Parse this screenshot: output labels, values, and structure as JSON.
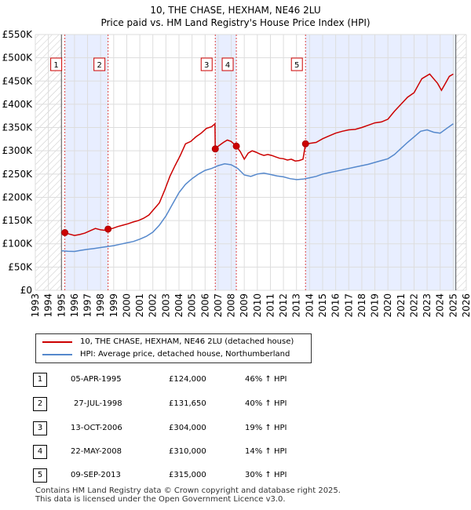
{
  "header": {
    "title": "10, THE CHASE, HEXHAM, NE46 2LU",
    "subtitle": "Price paid vs. HM Land Registry's House Price Index (HPI)"
  },
  "colors": {
    "price_line": "#cc0000",
    "hpi_line": "#5588cc",
    "shade": "#e8eeff",
    "grid": "#dddddd",
    "marker_border": "#cc0000"
  },
  "chart_data": {
    "type": "line",
    "title": "10, THE CHASE, HEXHAM, NE46 2LU",
    "subtitle": "Price paid vs. HM Land Registry's House Price Index (HPI)",
    "xlim": [
      1993,
      2026
    ],
    "ylim": [
      0,
      550000
    ],
    "grid": true,
    "x_ticks": [
      1993,
      1994,
      1995,
      1996,
      1997,
      1998,
      1999,
      2000,
      2001,
      2002,
      2003,
      2004,
      2005,
      2006,
      2007,
      2008,
      2009,
      2010,
      2011,
      2012,
      2013,
      2014,
      2015,
      2016,
      2017,
      2018,
      2019,
      2020,
      2021,
      2022,
      2023,
      2024,
      2025,
      2026
    ],
    "y_ticks": [
      {
        "value": 0,
        "label": "£0"
      },
      {
        "value": 50000,
        "label": "£50K"
      },
      {
        "value": 100000,
        "label": "£100K"
      },
      {
        "value": 150000,
        "label": "£150K"
      },
      {
        "value": 200000,
        "label": "£200K"
      },
      {
        "value": 250000,
        "label": "£250K"
      },
      {
        "value": 300000,
        "label": "£300K"
      },
      {
        "value": 350000,
        "label": "£350K"
      },
      {
        "value": 400000,
        "label": "£400K"
      },
      {
        "value": 450000,
        "label": "£450K"
      },
      {
        "value": 500000,
        "label": "£500K"
      },
      {
        "value": 550000,
        "label": "£550K"
      }
    ],
    "hatched_ranges": [
      [
        1993,
        1995.0
      ],
      [
        2025.2,
        2026
      ]
    ],
    "shaded_ranges": [
      [
        1995.26,
        1998.57
      ],
      [
        2006.78,
        2008.39
      ],
      [
        2013.69,
        2025.2
      ]
    ],
    "series": [
      {
        "name": "10, THE CHASE, HEXHAM, NE46 2LU (detached house)",
        "color": "#cc0000",
        "x": [
          1995.26,
          1995.6,
          1996.0,
          1996.4,
          1996.8,
          1997.2,
          1997.6,
          1998.0,
          1998.3,
          1998.57,
          1998.9,
          1999.3,
          1999.7,
          2000.1,
          2000.5,
          2000.9,
          2001.3,
          2001.7,
          2002.1,
          2002.5,
          2002.9,
          2003.3,
          2003.7,
          2004.1,
          2004.5,
          2004.9,
          2005.3,
          2005.7,
          2006.1,
          2006.5,
          2006.75,
          2006.78,
          2007.1,
          2007.4,
          2007.7,
          2008.0,
          2008.39,
          2008.7,
          2009.0,
          2009.3,
          2009.6,
          2009.9,
          2010.2,
          2010.5,
          2010.8,
          2011.1,
          2011.4,
          2011.7,
          2012.0,
          2012.3,
          2012.6,
          2012.9,
          2013.2,
          2013.5,
          2013.69,
          2014.0,
          2014.5,
          2015.0,
          2015.5,
          2016.0,
          2016.5,
          2017.0,
          2017.5,
          2018.0,
          2018.5,
          2019.0,
          2019.5,
          2020.0,
          2020.5,
          2021.0,
          2021.5,
          2022.0,
          2022.3,
          2022.6,
          2022.9,
          2023.2,
          2023.5,
          2023.8,
          2024.1,
          2024.4,
          2024.7,
          2025.0
        ],
        "y": [
          124000,
          121000,
          118000,
          120000,
          123000,
          128000,
          133000,
          130000,
          129000,
          131650,
          133000,
          137000,
          140000,
          143000,
          147000,
          150000,
          155000,
          162000,
          175000,
          188000,
          215000,
          245000,
          268000,
          290000,
          315000,
          320000,
          330000,
          338000,
          348000,
          352000,
          358000,
          304000,
          312000,
          318000,
          323000,
          320000,
          310000,
          298000,
          282000,
          295000,
          300000,
          297000,
          293000,
          290000,
          292000,
          290000,
          287000,
          284000,
          283000,
          280000,
          282000,
          278000,
          279000,
          282000,
          315000,
          316000,
          318000,
          326000,
          332000,
          338000,
          342000,
          345000,
          346000,
          350000,
          355000,
          360000,
          362000,
          368000,
          385000,
          400000,
          415000,
          425000,
          440000,
          455000,
          460000,
          465000,
          455000,
          445000,
          430000,
          445000,
          460000,
          465000
        ]
      },
      {
        "name": "HPI: Average price, detached house, Northumberland",
        "color": "#5588cc",
        "x": [
          1995.0,
          1995.5,
          1996.0,
          1996.5,
          1997.0,
          1997.5,
          1998.0,
          1998.5,
          1999.0,
          1999.5,
          2000.0,
          2000.5,
          2001.0,
          2001.5,
          2002.0,
          2002.5,
          2003.0,
          2003.5,
          2004.0,
          2004.5,
          2005.0,
          2005.5,
          2006.0,
          2006.5,
          2007.0,
          2007.5,
          2008.0,
          2008.5,
          2009.0,
          2009.5,
          2010.0,
          2010.5,
          2011.0,
          2011.5,
          2012.0,
          2012.5,
          2013.0,
          2013.5,
          2014.0,
          2014.5,
          2015.0,
          2015.5,
          2016.0,
          2016.5,
          2017.0,
          2017.5,
          2018.0,
          2018.5,
          2019.0,
          2019.5,
          2020.0,
          2020.5,
          2021.0,
          2021.5,
          2022.0,
          2022.5,
          2023.0,
          2023.5,
          2024.0,
          2024.5,
          2025.0
        ],
        "y": [
          85000,
          84000,
          83500,
          86000,
          88000,
          90000,
          92000,
          94000,
          96000,
          99000,
          102000,
          105000,
          110000,
          116000,
          125000,
          140000,
          160000,
          185000,
          210000,
          228000,
          240000,
          250000,
          258000,
          262000,
          268000,
          272000,
          270000,
          262000,
          248000,
          245000,
          250000,
          252000,
          249000,
          246000,
          244000,
          240000,
          238000,
          239000,
          242000,
          245000,
          250000,
          253000,
          256000,
          259000,
          262000,
          265000,
          268000,
          271000,
          275000,
          279000,
          283000,
          292000,
          305000,
          318000,
          330000,
          342000,
          345000,
          340000,
          338000,
          348000,
          358000
        ]
      }
    ],
    "sales": [
      {
        "n": "1",
        "x": 1995.26,
        "y": 124000
      },
      {
        "n": "2",
        "x": 1998.57,
        "y": 131650
      },
      {
        "n": "3",
        "x": 2006.78,
        "y": 304000
      },
      {
        "n": "4",
        "x": 2008.39,
        "y": 310000
      },
      {
        "n": "5",
        "x": 2013.69,
        "y": 315000
      }
    ]
  },
  "legend": [
    {
      "label": "10, THE CHASE, HEXHAM, NE46 2LU (detached house)",
      "color": "#cc0000"
    },
    {
      "label": "HPI: Average price, detached house, Northumberland",
      "color": "#5588cc"
    }
  ],
  "table": [
    {
      "n": "1",
      "date": "05-APR-1995",
      "price": "£124,000",
      "hpi": "46% ↑ HPI"
    },
    {
      "n": "2",
      "date": "27-JUL-1998",
      "price": "£131,650",
      "hpi": "40% ↑ HPI"
    },
    {
      "n": "3",
      "date": "13-OCT-2006",
      "price": "£304,000",
      "hpi": "19% ↑ HPI"
    },
    {
      "n": "4",
      "date": "22-MAY-2008",
      "price": "£310,000",
      "hpi": "14% ↑ HPI"
    },
    {
      "n": "5",
      "date": "09-SEP-2013",
      "price": "£315,000",
      "hpi": "30% ↑ HPI"
    }
  ],
  "footer": {
    "line1": "Contains HM Land Registry data © Crown copyright and database right 2025.",
    "line2": "This data is licensed under the Open Government Licence v3.0."
  }
}
